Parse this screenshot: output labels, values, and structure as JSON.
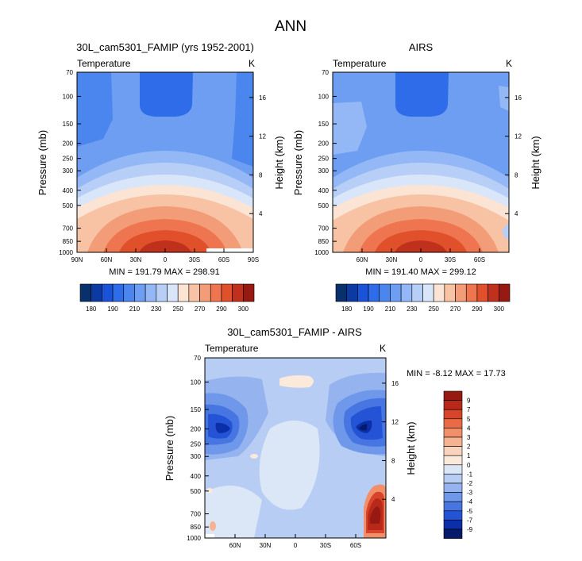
{
  "page_title": "ANN",
  "scale_upper": {
    "values": [
      "180",
      "190",
      "210",
      "230",
      "250",
      "270",
      "290",
      "300"
    ],
    "colors": [
      "#08306b",
      "#0c3aa3",
      "#1a52d9",
      "#2f6ce9",
      "#4a86ee",
      "#6d9ef2",
      "#93b8f5",
      "#b7cff7",
      "#d9e6fa",
      "#fbe4d4",
      "#f7c3a4",
      "#f39c78",
      "#ee754f",
      "#e0502b",
      "#c0311d",
      "#961a12"
    ]
  },
  "diff_scale": {
    "values": [
      "9",
      "7",
      "5",
      "4",
      "3",
      "2",
      "1",
      "0",
      "-1",
      "-2",
      "-3",
      "-4",
      "-5",
      "-7",
      "-9"
    ],
    "colors_top_to_bottom": [
      "#961a12",
      "#b8291a",
      "#d8442a",
      "#ea6a45",
      "#f28f6b",
      "#f6b391",
      "#f9d3bd",
      "#fbe9dc",
      "#dbe6f7",
      "#b8cdf3",
      "#95b4ef",
      "#6f97ea",
      "#4776e3",
      "#2453d6",
      "#0b2fa8",
      "#061a6b"
    ]
  },
  "chart_data": [
    {
      "type": "heatmap",
      "title": "30L_cam5301_FAMIP (yrs 1952-2001)",
      "left_label": "Temperature",
      "units": "K",
      "ylabel": "Pressure (mb)",
      "right_label": "Height (km)",
      "y_ticks": [
        "70",
        "100",
        "150",
        "200",
        "250",
        "300",
        "400",
        "500",
        "700",
        "850",
        "1000"
      ],
      "right_ticks": [
        "16",
        "12",
        "8",
        "4"
      ],
      "x_ticks": [
        "90N",
        "60N",
        "30N",
        "0",
        "30S",
        "60S",
        "90S"
      ],
      "min_max": "MIN = 191.79   MAX = 298.91",
      "min": 191.79,
      "max": 298.91
    },
    {
      "type": "heatmap",
      "title": "AIRS",
      "left_label": "Temperature",
      "units": "K",
      "ylabel": "Pressure (mb)",
      "right_label": "Height (km)",
      "y_ticks": [
        "70",
        "100",
        "150",
        "200",
        "250",
        "300",
        "400",
        "500",
        "700",
        "850",
        "1000"
      ],
      "right_ticks": [
        "16",
        "12",
        "8",
        "4"
      ],
      "x_ticks": [
        "60N",
        "30N",
        "0",
        "30S",
        "60S"
      ],
      "min_max": "MIN = 191.40   MAX = 299.12",
      "min": 191.4,
      "max": 299.12
    },
    {
      "type": "heatmap",
      "title": "30L_cam5301_FAMIP - AIRS",
      "left_label": "Temperature",
      "units": "K",
      "ylabel": "Pressure (mb)",
      "right_label": "Height (km)",
      "y_ticks": [
        "70",
        "100",
        "150",
        "200",
        "250",
        "300",
        "400",
        "500",
        "700",
        "850",
        "1000"
      ],
      "right_ticks": [
        "16",
        "12",
        "8",
        "4"
      ],
      "x_ticks": [
        "60N",
        "30N",
        "0",
        "30S",
        "60S"
      ],
      "min_max": "MIN = -8.12   MAX = 17.73",
      "min": -8.12,
      "max": 17.73
    }
  ]
}
